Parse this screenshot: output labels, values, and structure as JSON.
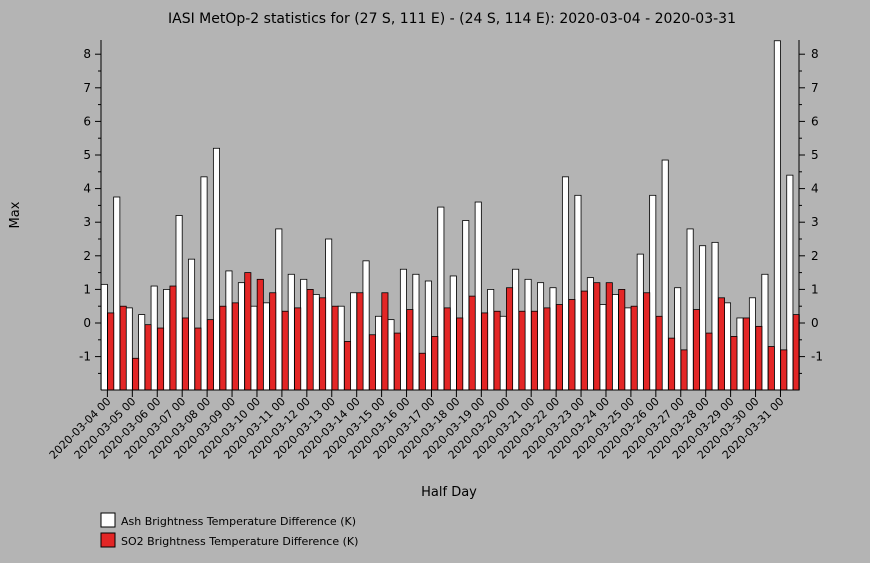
{
  "chart_data": {
    "type": "bar",
    "title": "IASI MetOp-2 statistics for (27 S, 111 E) - (24 S, 114 E): 2020-03-04 - 2020-03-31",
    "xlabel": "Half Day",
    "ylabel": "Max",
    "ylim": [
      -2,
      8.4
    ],
    "yticks": [
      -1,
      0,
      1,
      2,
      3,
      4,
      5,
      6,
      7,
      8
    ],
    "grid": false,
    "legend_position": "bottom-left",
    "categories": [
      "2020-03-04 00",
      "2020-03-04 12",
      "2020-03-05 00",
      "2020-03-05 12",
      "2020-03-06 00",
      "2020-03-06 12",
      "2020-03-07 00",
      "2020-03-07 12",
      "2020-03-08 00",
      "2020-03-08 12",
      "2020-03-09 00",
      "2020-03-09 12",
      "2020-03-10 00",
      "2020-03-10 12",
      "2020-03-11 00",
      "2020-03-11 12",
      "2020-03-12 00",
      "2020-03-12 12",
      "2020-03-13 00",
      "2020-03-13 12",
      "2020-03-14 00",
      "2020-03-14 12",
      "2020-03-15 00",
      "2020-03-15 12",
      "2020-03-16 00",
      "2020-03-16 12",
      "2020-03-17 00",
      "2020-03-17 12",
      "2020-03-18 00",
      "2020-03-18 12",
      "2020-03-19 00",
      "2020-03-19 12",
      "2020-03-20 00",
      "2020-03-20 12",
      "2020-03-21 00",
      "2020-03-21 12",
      "2020-03-22 00",
      "2020-03-22 12",
      "2020-03-23 00",
      "2020-03-23 12",
      "2020-03-24 00",
      "2020-03-24 12",
      "2020-03-25 00",
      "2020-03-25 12",
      "2020-03-26 00",
      "2020-03-26 12",
      "2020-03-27 00",
      "2020-03-27 12",
      "2020-03-28 00",
      "2020-03-28 12",
      "2020-03-29 00",
      "2020-03-29 12",
      "2020-03-30 00",
      "2020-03-30 12",
      "2020-03-31 00",
      "2020-03-31 12"
    ],
    "tick_labels": [
      "2020-03-04 00",
      "2020-03-05 00",
      "2020-03-06 00",
      "2020-03-07 00",
      "2020-03-08 00",
      "2020-03-09 00",
      "2020-03-10 00",
      "2020-03-11 00",
      "2020-03-12 00",
      "2020-03-13 00",
      "2020-03-14 00",
      "2020-03-15 00",
      "2020-03-16 00",
      "2020-03-17 00",
      "2020-03-18 00",
      "2020-03-19 00",
      "2020-03-20 00",
      "2020-03-21 00",
      "2020-03-22 00",
      "2020-03-23 00",
      "2020-03-24 00",
      "2020-03-25 00",
      "2020-03-26 00",
      "2020-03-27 00",
      "2020-03-28 00",
      "2020-03-29 00",
      "2020-03-30 00",
      "2020-03-31 00"
    ],
    "series": [
      {
        "name": "Ash Brightness Temperature Difference (K)",
        "color": "#ffffff",
        "values": [
          1.15,
          3.75,
          0.45,
          0.25,
          1.1,
          1.0,
          3.2,
          1.9,
          4.35,
          5.2,
          1.55,
          1.2,
          0.5,
          0.6,
          2.8,
          1.45,
          1.3,
          0.85,
          2.5,
          0.5,
          0.9,
          1.85,
          0.2,
          0.1,
          1.6,
          1.45,
          1.25,
          3.45,
          1.4,
          3.05,
          3.6,
          1.0,
          0.2,
          1.6,
          1.3,
          1.2,
          1.05,
          4.35,
          3.8,
          1.35,
          0.55,
          0.85,
          0.45,
          2.05,
          3.8,
          4.85,
          1.05,
          2.8,
          2.3,
          2.4,
          0.6,
          0.15,
          0.75,
          1.45,
          8.4,
          4.4
        ]
      },
      {
        "name": "SO2 Brightness Temperature Difference (K)",
        "color": "#e32626",
        "values": [
          0.3,
          0.5,
          -1.05,
          -0.05,
          -0.15,
          1.1,
          0.15,
          -0.15,
          0.1,
          0.5,
          0.6,
          1.5,
          1.3,
          0.9,
          0.35,
          0.45,
          1.0,
          0.75,
          0.5,
          -0.55,
          0.9,
          -0.35,
          0.9,
          -0.3,
          0.4,
          -0.9,
          -0.4,
          0.45,
          0.15,
          0.8,
          0.3,
          0.35,
          1.05,
          0.35,
          0.35,
          0.45,
          0.55,
          0.7,
          0.95,
          1.2,
          1.2,
          1.0,
          0.5,
          0.9,
          0.2,
          -0.45,
          -0.8,
          0.4,
          -0.3,
          0.75,
          -0.4,
          0.15,
          -0.1,
          -0.7,
          -0.8,
          0.25
        ]
      }
    ]
  }
}
